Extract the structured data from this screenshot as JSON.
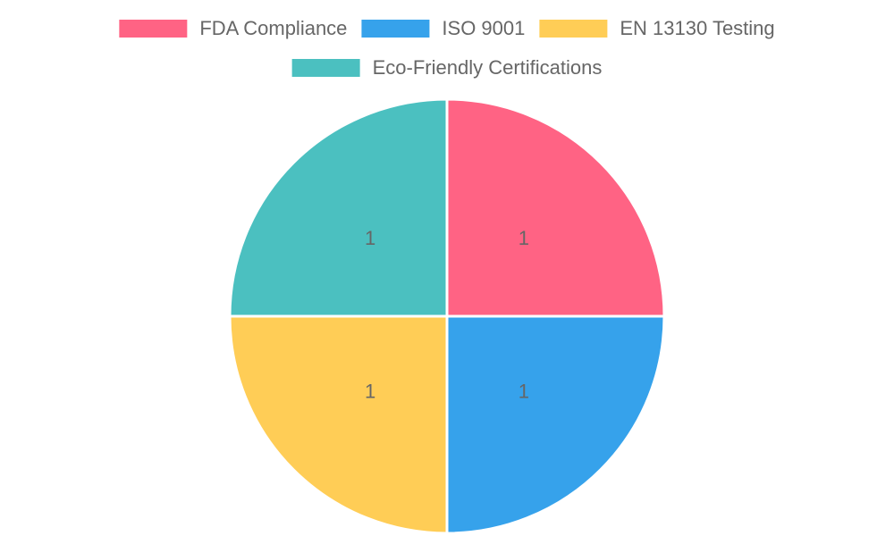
{
  "chart_data": {
    "type": "pie",
    "categories": [
      "FDA Compliance",
      "ISO 9001",
      "EN 13130 Testing",
      "Eco-Friendly Certifications"
    ],
    "values": [
      1,
      1,
      1,
      1
    ],
    "colors": [
      "#ff6384",
      "#36a2eb",
      "#ffcd56",
      "#4bc0c0"
    ],
    "legend": "top"
  }
}
